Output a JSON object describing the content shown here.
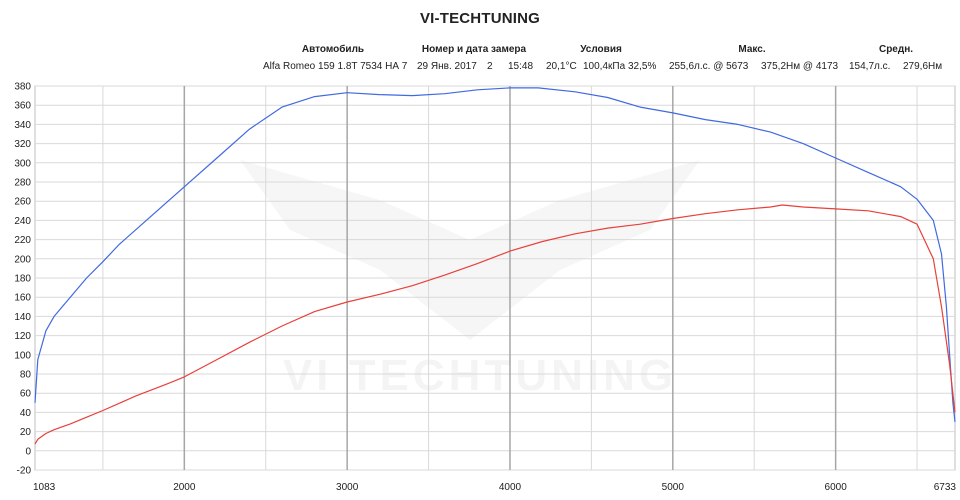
{
  "title": "VI-TECHTUNING",
  "header": {
    "car_label": "Автомобиль",
    "measure_label": "Номер и дата замера",
    "conditions_label": "Условия",
    "max_label": "Макс.",
    "avg_label": "Средн."
  },
  "values": {
    "car": "Alfa Romeo 159 1.8T 7534 НА 7",
    "date": "29 Янв. 2017",
    "run": "2",
    "time": "15:48",
    "temp": "20,1°C",
    "pressure": "100,4кПа",
    "humidity": "32,5%",
    "max_power": "255,6л.с. @ 5673",
    "max_torque": "375,2Нм @ 4173",
    "avg_power": "154,7л.с.",
    "avg_torque": "279,6Нм"
  },
  "watermark": {
    "text": "VI TECHTUNING"
  },
  "chart_data": {
    "type": "line",
    "xlim": [
      1083,
      6733
    ],
    "x_ticks": [
      1083,
      2000,
      3000,
      4000,
      5000,
      6000,
      6733
    ],
    "ylim": [
      -20,
      380
    ],
    "y_step": 20,
    "grid": true,
    "series": [
      {
        "color": "#4169e1",
        "points": [
          [
            1083,
            50
          ],
          [
            1100,
            95
          ],
          [
            1150,
            125
          ],
          [
            1200,
            140
          ],
          [
            1300,
            160
          ],
          [
            1400,
            180
          ],
          [
            1500,
            197
          ],
          [
            1600,
            215
          ],
          [
            1800,
            245
          ],
          [
            2000,
            275
          ],
          [
            2200,
            305
          ],
          [
            2400,
            335
          ],
          [
            2600,
            358
          ],
          [
            2800,
            369
          ],
          [
            3000,
            373
          ],
          [
            3200,
            371
          ],
          [
            3400,
            370
          ],
          [
            3600,
            372
          ],
          [
            3800,
            376
          ],
          [
            4000,
            378
          ],
          [
            4173,
            378
          ],
          [
            4400,
            374
          ],
          [
            4600,
            368
          ],
          [
            4800,
            358
          ],
          [
            5000,
            352
          ],
          [
            5200,
            345
          ],
          [
            5400,
            340
          ],
          [
            5600,
            332
          ],
          [
            5800,
            320
          ],
          [
            6000,
            305
          ],
          [
            6200,
            290
          ],
          [
            6400,
            275
          ],
          [
            6500,
            262
          ],
          [
            6600,
            240
          ],
          [
            6650,
            205
          ],
          [
            6680,
            150
          ],
          [
            6700,
            100
          ],
          [
            6720,
            50
          ],
          [
            6733,
            30
          ]
        ]
      },
      {
        "color": "#e8403a",
        "points": [
          [
            1083,
            7
          ],
          [
            1100,
            12
          ],
          [
            1150,
            18
          ],
          [
            1200,
            22
          ],
          [
            1300,
            28
          ],
          [
            1400,
            35
          ],
          [
            1500,
            42
          ],
          [
            1700,
            57
          ],
          [
            1900,
            70
          ],
          [
            2000,
            77
          ],
          [
            2200,
            95
          ],
          [
            2400,
            113
          ],
          [
            2600,
            130
          ],
          [
            2800,
            145
          ],
          [
            3000,
            155
          ],
          [
            3200,
            163
          ],
          [
            3400,
            172
          ],
          [
            3600,
            183
          ],
          [
            3800,
            195
          ],
          [
            4000,
            208
          ],
          [
            4200,
            218
          ],
          [
            4400,
            226
          ],
          [
            4600,
            232
          ],
          [
            4800,
            236
          ],
          [
            5000,
            242
          ],
          [
            5200,
            247
          ],
          [
            5400,
            251
          ],
          [
            5600,
            254
          ],
          [
            5673,
            256
          ],
          [
            5800,
            254
          ],
          [
            6000,
            252
          ],
          [
            6200,
            250
          ],
          [
            6400,
            244
          ],
          [
            6500,
            236
          ],
          [
            6600,
            200
          ],
          [
            6650,
            150
          ],
          [
            6700,
            90
          ],
          [
            6733,
            40
          ]
        ]
      }
    ]
  }
}
